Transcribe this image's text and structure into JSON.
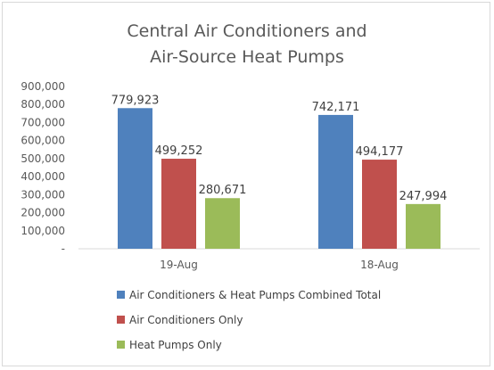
{
  "chart_data": {
    "type": "bar",
    "title_lines": [
      "Central Air Conditioners and",
      "Air-Source Heat Pumps"
    ],
    "categories": [
      "19-Aug",
      "18-Aug"
    ],
    "series": [
      {
        "name": "Air Conditioners & Heat Pumps Combined Total",
        "color": "#4f81bd",
        "values": [
          779923,
          742171
        ],
        "labels": [
          "779,923",
          "742,171"
        ]
      },
      {
        "name": "Air Conditioners Only",
        "color": "#c0504d",
        "values": [
          499252,
          494177
        ],
        "labels": [
          "499,252",
          "494,177"
        ]
      },
      {
        "name": "Heat Pumps Only",
        "color": "#9bbb59",
        "values": [
          280671,
          247994
        ],
        "labels": [
          "280,671",
          "247,994"
        ]
      }
    ],
    "ylim": [
      0,
      900000
    ],
    "y_ticks": [
      0,
      100000,
      200000,
      300000,
      400000,
      500000,
      600000,
      700000,
      800000,
      900000
    ],
    "y_tick_labels": [
      "-",
      "100,000",
      "200,000",
      "300,000",
      "400,000",
      "500,000",
      "600,000",
      "700,000",
      "800,000",
      "900,000"
    ],
    "grid": false,
    "legend_position": "bottom"
  }
}
